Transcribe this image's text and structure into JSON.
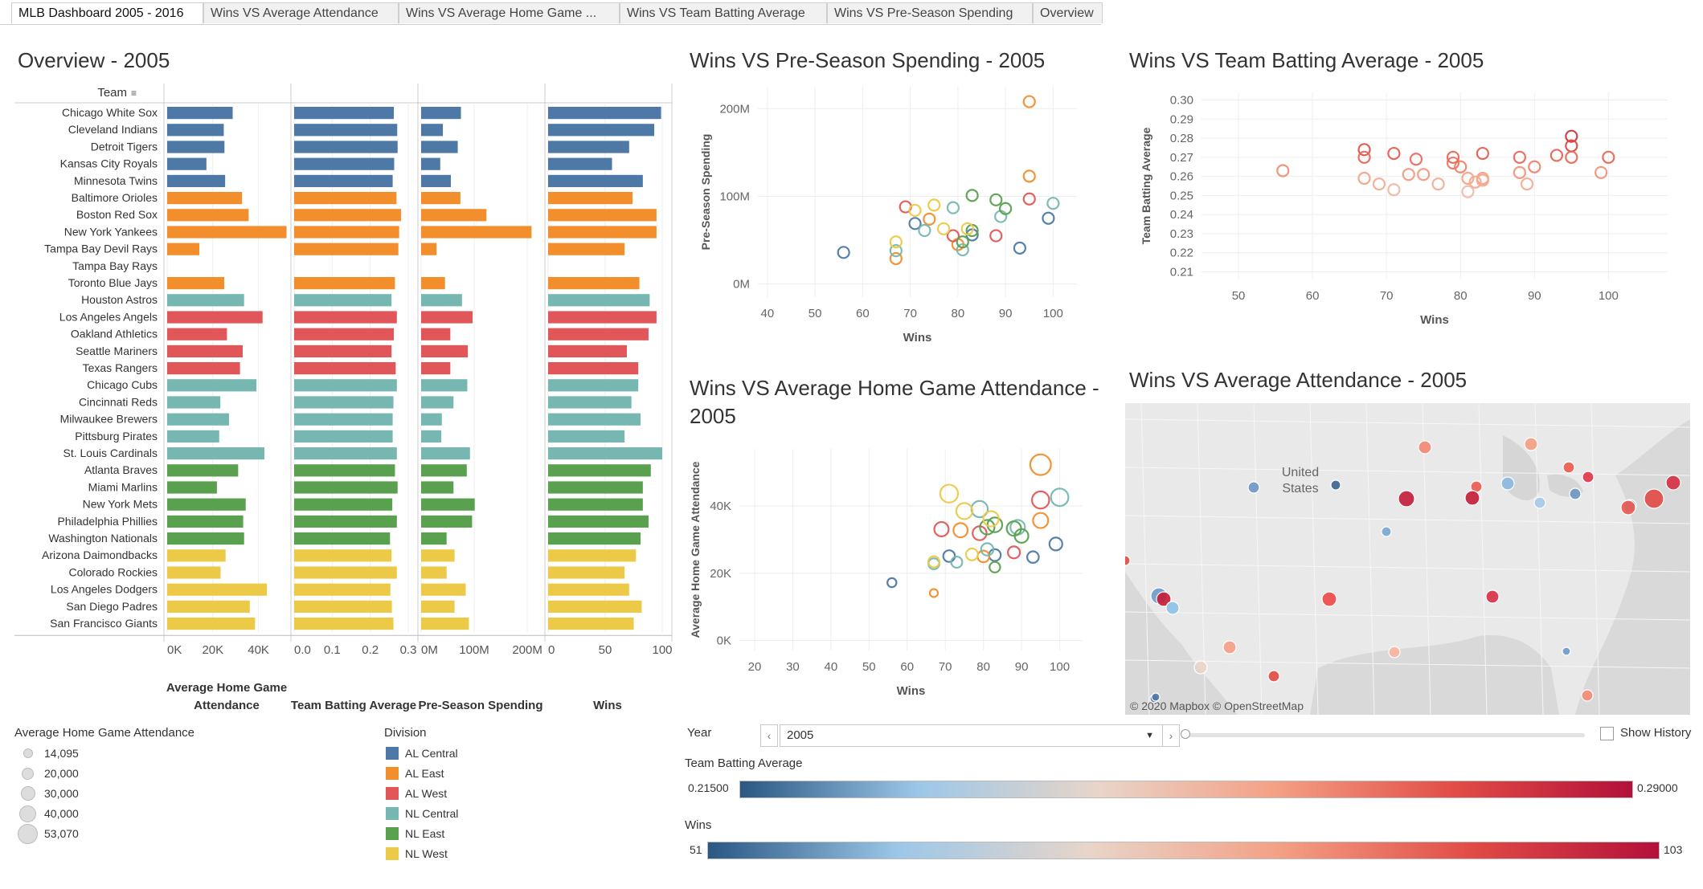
{
  "tabs": [
    {
      "label": "MLB Dashboard 2005 - 2016",
      "active": true
    },
    {
      "label": "Wins VS Average Attendance",
      "active": false
    },
    {
      "label": "Wins VS Average Home Game ...",
      "active": false
    },
    {
      "label": "Wins VS Team Batting Average",
      "active": false
    },
    {
      "label": "Wins VS Pre-Season Spending",
      "active": false
    },
    {
      "label": "Overview",
      "active": false
    }
  ],
  "colors": {
    "divisions": {
      "AL Central": "#4e79a7",
      "AL East": "#f28e2b",
      "AL West": "#e15759",
      "NL Central": "#76b7b2",
      "NL East": "#59a14f",
      "NL West": "#edc948"
    },
    "diverging": [
      "#2a5783",
      "#9cc7e8",
      "#e8d5c9",
      "#f4a085",
      "#e14d46",
      "#b3113a"
    ]
  },
  "overview": {
    "title": "Overview - 2005",
    "team_header": "Team",
    "column_labels": [
      "Average Home Game Attendance",
      "Team Batting Average",
      "Pre-Season Spending",
      "Wins"
    ],
    "axes": {
      "attendance": [
        "0K",
        "20K",
        "40K"
      ],
      "batting": [
        "0.0",
        "0.1",
        "0.2",
        "0.3"
      ],
      "spending": [
        "0M",
        "100M",
        "200M"
      ],
      "wins": [
        "0",
        "50",
        "100"
      ]
    }
  },
  "chart_data": [
    {
      "type": "bar",
      "title": "Overview - 2005",
      "categories": [
        "Chicago White Sox",
        "Cleveland Indians",
        "Detroit Tigers",
        "Kansas City Royals",
        "Minnesota Twins",
        "Baltimore Orioles",
        "Boston Red Sox",
        "New York Yankees",
        "Tampa Bay Devil Rays",
        "Tampa Bay Rays",
        "Toronto Blue Jays",
        "Houston Astros",
        "Los Angeles Angels",
        "Oakland Athletics",
        "Seattle Mariners",
        "Texas Rangers",
        "Chicago Cubs",
        "Cincinnati Reds",
        "Milwaukee Brewers",
        "Pittsburg Pirates",
        "St. Louis Cardinals",
        "Atlanta Braves",
        "Miami Marlins",
        "New York Mets",
        "Philadelphia Phillies",
        "Washington Nationals",
        "Arizona Daimondbacks",
        "Colorado Rockies",
        "Los Angeles Dodgers",
        "San Diego Padres",
        "San Francisco Giants"
      ],
      "divisions": [
        "AL Central",
        "AL Central",
        "AL Central",
        "AL Central",
        "AL Central",
        "AL East",
        "AL East",
        "AL East",
        "AL East",
        "AL East",
        "AL East",
        "NL Central",
        "AL West",
        "AL West",
        "AL West",
        "AL West",
        "NL Central",
        "NL Central",
        "NL Central",
        "NL Central",
        "NL Central",
        "NL East",
        "NL East",
        "NL East",
        "NL East",
        "NL East",
        "NL West",
        "NL West",
        "NL West",
        "NL West",
        "NL West"
      ],
      "series": [
        {
          "name": "Average Home Game Attendance",
          "values": [
            28700,
            24800,
            25100,
            17200,
            25400,
            32800,
            35700,
            52300,
            14100,
            null,
            25000,
            33700,
            41800,
            26200,
            33100,
            31900,
            39100,
            23300,
            27100,
            22800,
            42600,
            31100,
            21800,
            34400,
            33300,
            33700,
            25600,
            23400,
            43700,
            36200,
            38500
          ]
        },
        {
          "name": "Team Batting Average",
          "values": [
            0.262,
            0.271,
            0.272,
            0.263,
            0.259,
            0.269,
            0.281,
            0.276,
            0.274,
            null,
            0.265,
            0.256,
            0.27,
            0.262,
            0.256,
            0.267,
            0.27,
            0.261,
            0.259,
            0.259,
            0.27,
            0.265,
            0.272,
            0.258,
            0.27,
            0.252,
            0.256,
            0.27,
            0.253,
            0.257,
            0.261
          ]
        },
        {
          "name": "Pre-Season Spending",
          "values": [
            75,
            41,
            69,
            36,
            56,
            74,
            123,
            208,
            29,
            null,
            45,
            77,
            97,
            55,
            88,
            55,
            87,
            61,
            39,
            38,
            92,
            86,
            61,
            101,
            96,
            48,
            63,
            48,
            84,
            63,
            90
          ]
        },
        {
          "name": "Wins",
          "values": [
            99,
            93,
            71,
            56,
            83,
            74,
            95,
            95,
            67,
            null,
            80,
            89,
            95,
            88,
            69,
            79,
            79,
            73,
            81,
            67,
            100,
            90,
            83,
            83,
            88,
            81,
            77,
            67,
            71,
            82,
            75
          ]
        }
      ],
      "axes": {
        "attendance": [
          0,
          50000
        ],
        "batting": [
          0,
          0.3
        ],
        "spending": [
          0,
          215
        ],
        "wins": [
          0,
          100
        ]
      }
    },
    {
      "type": "scatter",
      "title": "Wins VS Pre-Season Spending - 2005",
      "xlabel": "Wins",
      "ylabel": "Pre-Season Spending",
      "xlim": [
        38,
        105
      ],
      "ylim": [
        -15,
        225
      ],
      "xticks": [
        40,
        50,
        60,
        70,
        80,
        90,
        100
      ],
      "yticks": [
        0,
        100,
        200
      ],
      "ytick_labels": [
        "0M",
        "100M",
        "200M"
      ]
    },
    {
      "type": "scatter",
      "title": "Wins VS Team Batting Average - 2005",
      "xlabel": "Wins",
      "ylabel": "Team Batting Average",
      "xlim": [
        45,
        108
      ],
      "ylim": [
        0.206,
        0.304
      ],
      "xticks": [
        50,
        60,
        70,
        80,
        90,
        100
      ],
      "yticks": [
        0.21,
        0.22,
        0.23,
        0.24,
        0.25,
        0.26,
        0.27,
        0.28,
        0.29,
        0.3
      ],
      "ytick_labels": [
        "0.21",
        "0.22",
        "0.23",
        "0.24",
        "0.25",
        "0.26",
        "0.27",
        "0.28",
        "0.29",
        "0.30"
      ]
    },
    {
      "type": "scatter",
      "title": "Wins VS Average Home Game Attendance - 2005",
      "xlabel": "Wins",
      "ylabel": "Average Home Game Attendance",
      "xlim": [
        16,
        106
      ],
      "ylim": [
        -3000,
        57000
      ],
      "xticks": [
        20,
        30,
        40,
        50,
        60,
        70,
        80,
        90,
        100
      ],
      "yticks": [
        0,
        20000,
        40000
      ],
      "ytick_labels": [
        "0K",
        "20K",
        "40K"
      ]
    }
  ],
  "map": {
    "title": "Wins VS Average Attendance - 2005",
    "label_country": "United",
    "label_country2": "States",
    "attribution": "© 2020 Mapbox © OpenStreetMap"
  },
  "legends": {
    "attendance_title": "Average Home Game Attendance",
    "attendance_sizes": [
      "14,095",
      "20,000",
      "30,000",
      "40,000",
      "53,070"
    ],
    "division_title": "Division",
    "divisions": [
      "AL Central",
      "AL East",
      "AL West",
      "NL Central",
      "NL East",
      "NL West"
    ]
  },
  "controls": {
    "year_label": "Year",
    "year_value": "2005",
    "show_history": "Show History",
    "batting_label": "Team Batting Average",
    "batting_min": "0.21500",
    "batting_max": "0.29000",
    "wins_label": "Wins",
    "wins_min": "51",
    "wins_max": "103"
  }
}
